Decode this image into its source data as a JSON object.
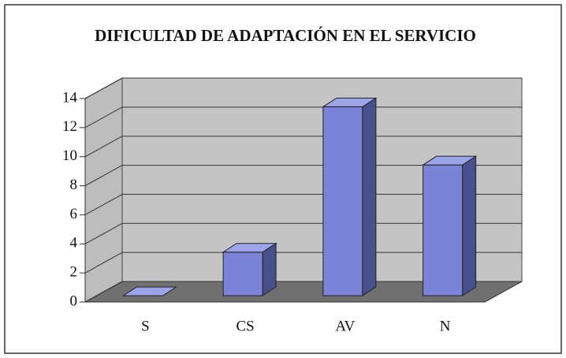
{
  "chart_data": {
    "type": "bar3d",
    "title": "DIFICULTAD DE ADAPTACIÓN EN EL SERVICIO",
    "categories": [
      "S",
      "CS",
      "AV",
      "N"
    ],
    "values": [
      0,
      3,
      13,
      9
    ],
    "color": "#7b83d6",
    "ylim": [
      0,
      14
    ],
    "yticks": [
      0,
      2,
      4,
      6,
      8,
      10,
      12,
      14
    ],
    "grid": true
  }
}
